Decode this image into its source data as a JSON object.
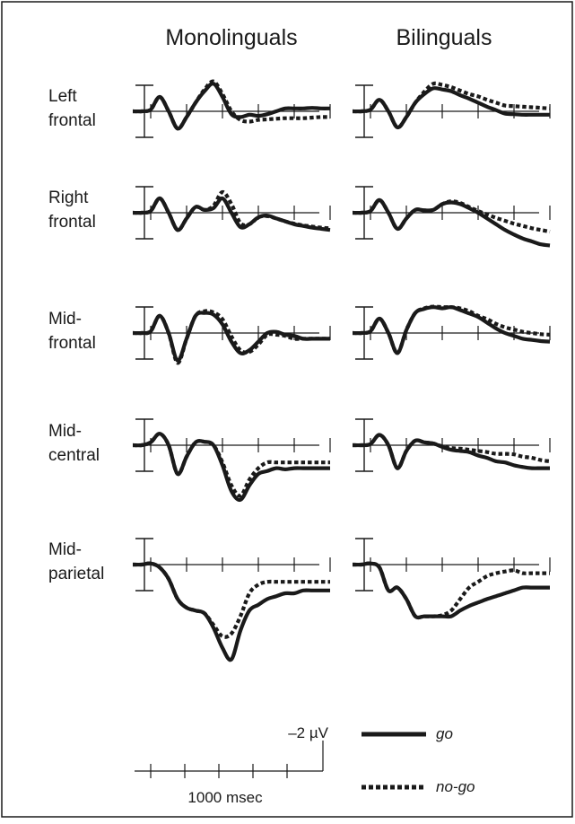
{
  "chart_data": {
    "type": "line",
    "column_titles": [
      "Monolinguals",
      "Bilinguals"
    ],
    "row_labels": [
      [
        "Left",
        "frontal"
      ],
      [
        "Right",
        "frontal"
      ],
      [
        "Mid-",
        "frontal"
      ],
      [
        "Mid-",
        "central"
      ],
      [
        "Mid-",
        "parietal"
      ]
    ],
    "x_time_ms": [
      -200,
      -100,
      0,
      100,
      200,
      300,
      400,
      500,
      600,
      700,
      800,
      900,
      1000,
      1100,
      1200,
      1300,
      1400,
      1500,
      1600,
      1700,
      1800,
      1900,
      2000
    ],
    "series_style": {
      "go": {
        "color": "#1a1a1a",
        "dash": "solid"
      },
      "no-go": {
        "color": "#1a1a1a",
        "dash": "dotted"
      }
    },
    "panels": [
      {
        "group": "Monolinguals",
        "site": "Left frontal",
        "go": [
          0,
          0,
          0.3,
          2.5,
          0,
          -3,
          -1,
          1.5,
          3.5,
          4.8,
          2.5,
          -0.5,
          -1.0,
          -0.6,
          -0.8,
          -0.5,
          0,
          0.5,
          0.5,
          0.5,
          0.6,
          0.5,
          0.5
        ],
        "no-go": [
          0,
          0,
          0.3,
          2.5,
          0,
          -3,
          -1,
          1.5,
          3.8,
          5.2,
          3.0,
          0,
          -1.5,
          -1.8,
          -1.5,
          -1.4,
          -1.3,
          -1.2,
          -1.2,
          -1.2,
          -1.1,
          -1.0,
          -1.0
        ]
      },
      {
        "group": "Bilinguals",
        "site": "Left frontal",
        "go": [
          0,
          0,
          0.3,
          2.0,
          0,
          -2.8,
          -1.0,
          1.5,
          3.0,
          4.0,
          3.8,
          3.5,
          2.8,
          2.2,
          1.5,
          0.8,
          0.2,
          -0.4,
          -0.5,
          -0.6,
          -0.6,
          -0.6,
          -0.6
        ],
        "no-go": [
          0,
          0,
          0.3,
          2.0,
          0,
          -2.8,
          -1.0,
          1.5,
          3.4,
          4.8,
          4.6,
          4.2,
          3.6,
          3.0,
          2.6,
          2.0,
          1.5,
          1.0,
          0.9,
          0.8,
          0.7,
          0.6,
          0.5
        ]
      },
      {
        "group": "Monolinguals",
        "site": "Right frontal",
        "go": [
          0,
          0,
          0.3,
          2.5,
          0,
          -3,
          -1,
          1.0,
          0.5,
          0.8,
          2.5,
          0,
          -2.5,
          -2.0,
          -0.8,
          -0.5,
          -1.0,
          -1.5,
          -2.0,
          -2.3,
          -2.6,
          -2.8,
          -3.0
        ],
        "no-go": [
          0,
          0,
          0.3,
          2.5,
          0,
          -3,
          -1,
          1.0,
          0.5,
          1.2,
          3.6,
          1.5,
          -1.8,
          -2.0,
          -0.8,
          -0.6,
          -1.0,
          -1.5,
          -1.9,
          -2.2,
          -2.4,
          -2.6,
          -2.7
        ]
      },
      {
        "group": "Bilinguals",
        "site": "Right frontal",
        "go": [
          0,
          0,
          0.3,
          2.2,
          0,
          -2.8,
          -1.0,
          0.5,
          0.4,
          0.5,
          1.5,
          1.8,
          1.5,
          0.8,
          0,
          -1.0,
          -2.0,
          -3.0,
          -3.8,
          -4.5,
          -5.0,
          -5.5,
          -5.7
        ],
        "no-go": [
          0,
          0,
          0.3,
          2.2,
          0,
          -2.8,
          -1.0,
          0.5,
          0.4,
          0.5,
          1.5,
          2.0,
          1.7,
          1.0,
          0.3,
          -0.3,
          -0.9,
          -1.4,
          -1.9,
          -2.3,
          -2.7,
          -3.0,
          -3.3
        ]
      },
      {
        "group": "Monolinguals",
        "site": "Mid-frontal",
        "go": [
          0,
          0,
          0.3,
          3.0,
          0,
          -4.8,
          -1.0,
          3.0,
          3.5,
          3.2,
          1.5,
          -1.5,
          -3.5,
          -3.0,
          -1.5,
          0,
          0.2,
          -0.3,
          -0.5,
          -1.0,
          -1.0,
          -1.0,
          -1.0
        ],
        "no-go": [
          0,
          0,
          0.3,
          3.0,
          0,
          -5.2,
          -1.0,
          3.0,
          3.8,
          3.6,
          2.4,
          -0.6,
          -3.0,
          -3.3,
          -2.0,
          -0.3,
          -0.3,
          -0.5,
          -1.0,
          -1.0,
          -1.0,
          -1.0,
          -1.0
        ]
      },
      {
        "group": "Bilinguals",
        "site": "Mid-frontal",
        "go": [
          0,
          0,
          0.3,
          2.5,
          0,
          -3.5,
          0.5,
          3.5,
          4.2,
          4.5,
          4.3,
          4.5,
          4.0,
          3.4,
          2.8,
          1.8,
          0.8,
          0,
          -0.5,
          -1.0,
          -1.2,
          -1.4,
          -1.5
        ],
        "no-go": [
          0,
          0,
          0.3,
          2.5,
          0,
          -3.5,
          0.5,
          3.5,
          4.3,
          4.6,
          4.5,
          4.5,
          4.3,
          3.8,
          3.0,
          2.4,
          1.6,
          1.0,
          0.6,
          0.2,
          0,
          -0.2,
          -0.3
        ]
      },
      {
        "group": "Monolinguals",
        "site": "Mid-central",
        "go": [
          0,
          0,
          0.5,
          2.0,
          0,
          -5.0,
          -2.0,
          0.5,
          0.6,
          0,
          -3.5,
          -8.0,
          -9.5,
          -7.0,
          -5.0,
          -4.5,
          -4.0,
          -4.2,
          -4.0,
          -4.0,
          -4.0,
          -4.0,
          -4.0
        ],
        "no-go": [
          0,
          0,
          0.5,
          2.0,
          0,
          -5.0,
          -2.0,
          0.5,
          0.6,
          0,
          -3.0,
          -7.0,
          -8.8,
          -6.0,
          -4.0,
          -3.0,
          -3.0,
          -3.0,
          -3.0,
          -3.0,
          -3.0,
          -3.0,
          -3.0
        ]
      },
      {
        "group": "Bilinguals",
        "site": "Mid-central",
        "go": [
          0,
          0,
          0.2,
          1.8,
          0,
          -4.0,
          -1.0,
          0.8,
          0.5,
          0.3,
          -0.3,
          -0.8,
          -1.0,
          -1.2,
          -1.8,
          -2.2,
          -2.8,
          -3.0,
          -3.5,
          -3.8,
          -4.0,
          -4.0,
          -4.0
        ],
        "no-go": [
          0,
          0,
          0.2,
          1.8,
          0,
          -4.0,
          -1.0,
          0.8,
          0.5,
          0.3,
          -0.2,
          -0.5,
          -0.6,
          -0.8,
          -1.0,
          -1.2,
          -1.5,
          -1.5,
          -1.6,
          -2.0,
          -2.2,
          -2.6,
          -2.8
        ]
      },
      {
        "group": "Monolinguals",
        "site": "Mid-parietal",
        "go": [
          0,
          0,
          0.2,
          -0.5,
          -2.5,
          -6.0,
          -7.5,
          -8.0,
          -8.5,
          -11.0,
          -14.5,
          -16.5,
          -11.5,
          -8.0,
          -7.0,
          -6.0,
          -5.5,
          -5.0,
          -5.0,
          -4.5,
          -4.5,
          -4.5,
          -4.5
        ],
        "no-go": [
          0,
          0,
          0.2,
          -0.5,
          -2.5,
          -6.0,
          -7.5,
          -8.0,
          -8.5,
          -10.5,
          -12.5,
          -12.0,
          -9.0,
          -5.0,
          -3.5,
          -3.0,
          -3.0,
          -3.0,
          -3.0,
          -3.0,
          -3.0,
          -3.0,
          -3.0
        ]
      },
      {
        "group": "Bilinguals",
        "site": "Mid-parietal",
        "go": [
          0,
          0,
          0.2,
          -0.5,
          -4.5,
          -4.0,
          -6.0,
          -9.0,
          -9.0,
          -9.0,
          -9.0,
          -9.0,
          -8.0,
          -7.2,
          -6.6,
          -6.0,
          -5.5,
          -5.0,
          -4.5,
          -4.0,
          -4.0,
          -4.0,
          -4.0
        ],
        "no-go": [
          0,
          0,
          0.2,
          -0.5,
          -4.5,
          -4.0,
          -6.0,
          -9.0,
          -9.0,
          -9.0,
          -8.8,
          -8.0,
          -6.0,
          -4.0,
          -3.0,
          -2.0,
          -1.5,
          -1.2,
          -1.0,
          -1.5,
          -1.5,
          -1.5,
          -1.5
        ]
      }
    ],
    "scale_bar": {
      "amplitude_label": "–2 µV",
      "time_label": "1000 msec"
    },
    "legend": [
      {
        "key": "go",
        "label": "go",
        "style": "solid"
      },
      {
        "key": "no-go",
        "label": "no-go",
        "style": "dotted"
      }
    ]
  }
}
